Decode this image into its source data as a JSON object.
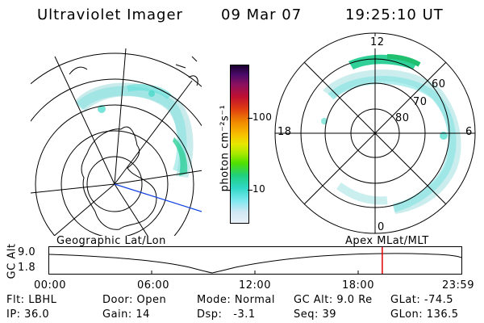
{
  "header": {
    "instrument": "Ultraviolet Imager",
    "date": "09 Mar 07",
    "time": "19:25:10 UT"
  },
  "colorbar": {
    "unit_label": "photon cm⁻²s⁻¹",
    "ticks": [
      "100",
      "10"
    ]
  },
  "right_map": {
    "mlt_labels": {
      "top": "12",
      "left": "18",
      "right": "6",
      "bottom": "0"
    },
    "lat_labels": [
      "60",
      "70",
      "80"
    ]
  },
  "altitude_plot": {
    "left_title": "Geographic Lat/Lon",
    "right_title": "Apex MLat/MLT",
    "ylabel": "GC Alt",
    "yticks": [
      "9.0",
      "1.8"
    ],
    "xticks": [
      "00:00",
      "06:00",
      "12:00",
      "18:00",
      "23:59"
    ],
    "current_time_fraction": 0.808
  },
  "info": {
    "row1": {
      "filter": "Flt: LBHL",
      "door": "Door: Open",
      "mode": "Mode: Normal",
      "gc_alt": "GC Alt: 9.0 Re",
      "glat": "GLat: -74.5"
    },
    "row2": {
      "ip": "IP: 36.0",
      "gain": "Gain: 14",
      "dsp": "Dsp:   -3.1",
      "seq": "Seq: 39",
      "glon": "GLon: 136.5"
    }
  },
  "colors": {
    "aurora_low": "#9fe0e0",
    "aurora_mid": "#33dcc0",
    "aurora_high": "#28d070",
    "current_time_marker": "#e00000",
    "projection_line": "#1040e0"
  }
}
